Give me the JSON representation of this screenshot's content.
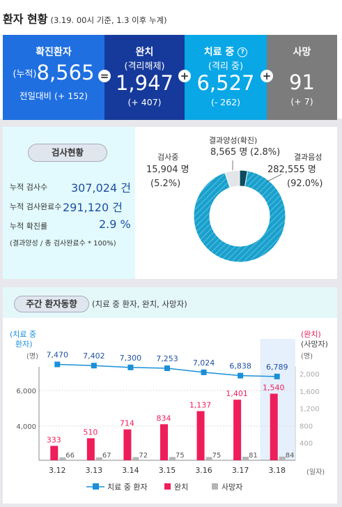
{
  "header": {
    "title": "환자 현황",
    "subtitle": "(3.19. 00시 기준, 1.3 이후 누계)"
  },
  "summary": {
    "confirmed": {
      "label": "확진환자",
      "prefix": "(누적)",
      "value": "8,565",
      "change": "전일대비 (+ 152)",
      "color": "#1f6fe0"
    },
    "released": {
      "label": "완치",
      "sub": "(격리해제)",
      "value": "1,947",
      "change": "(+ 407)",
      "color": "#163a9b"
    },
    "treating": {
      "label": "치료 중",
      "sub": "(격리 중)",
      "value": "6,527",
      "change": "(- 262)",
      "color": "#09a7e6",
      "info_icon": "?"
    },
    "deaths": {
      "label": "사망",
      "value": "91",
      "change": "(+ 7)",
      "color": "#7c7c7c"
    },
    "op_equals": "=",
    "op_plus1": "+",
    "op_plus2": "+"
  },
  "tests": {
    "title": "검사현황",
    "rows": [
      {
        "label": "누적 검사수",
        "value": "307,024 건"
      },
      {
        "label": "누적 검사완료수",
        "value": "291,120 건"
      },
      {
        "label": "누적 확진률",
        "value": "2.9 %"
      }
    ],
    "note": "(결과양성 / 총 검사완료수 * 100%)"
  },
  "donut": {
    "segments": [
      {
        "name": "결과음성",
        "value": 282555,
        "value_label": "282,555 명",
        "pct_label": "(92.0%)",
        "color": "#19a0cd"
      },
      {
        "name": "검사중",
        "value": 15904,
        "value_label": "15,904 명",
        "pct_label": "(5.2%)",
        "color": "#e3e6e8"
      },
      {
        "name": "결과양성(확진)",
        "value": 8565,
        "value_label": "8,565 명",
        "pct_label": "(2.8%)",
        "color": "#0d4b5e"
      }
    ]
  },
  "weekly": {
    "title": "주간 환자동향",
    "subtitle": "(치료 중 환자, 완치, 사망자)",
    "left_axis_title": [
      "(치료 중",
      "환자)"
    ],
    "left_axis_unit": "(명)",
    "right_axis_title": [
      "(완치)",
      "(사망자)"
    ],
    "right_axis_unit": "(명)",
    "x_unit": "(일자)",
    "legend": {
      "treating": "치료 중 환자",
      "released": "완치",
      "deaths": "사망자"
    }
  },
  "chart_data": {
    "type": "bar",
    "categories": [
      "3.12",
      "3.13",
      "3.14",
      "3.15",
      "3.16",
      "3.17",
      "3.18"
    ],
    "series": [
      {
        "name": "치료 중 환자",
        "type": "line",
        "axis": "left",
        "values": [
          7470,
          7402,
          7300,
          7253,
          7024,
          6838,
          6789
        ],
        "labels": [
          "7,470",
          "7,402",
          "7,300",
          "7,253",
          "7,024",
          "6,838",
          "6,789"
        ],
        "color": "#1a8fd8"
      },
      {
        "name": "완치",
        "type": "bar",
        "axis": "right",
        "values": [
          333,
          510,
          714,
          834,
          1137,
          1401,
          1540
        ],
        "labels": [
          "333",
          "510",
          "714",
          "834",
          "1,137",
          "1,401",
          "1,540"
        ],
        "color": "#ee1e5a"
      },
      {
        "name": "사망자",
        "type": "bar",
        "axis": "right",
        "values": [
          66,
          67,
          72,
          75,
          75,
          81,
          84
        ],
        "labels": [
          "66",
          "67",
          "72",
          "75",
          "75",
          "81",
          "84"
        ],
        "color": "#b5b5b5"
      }
    ],
    "left_ticks": [
      "4,000",
      "6,000"
    ],
    "left_tick_values": [
      4000,
      6000
    ],
    "right_ticks": [
      "400",
      "800",
      "1,200",
      "1,600",
      "2,000"
    ],
    "right_tick_values": [
      400,
      800,
      1200,
      1600,
      2000
    ],
    "highlight_category": "3.18"
  }
}
